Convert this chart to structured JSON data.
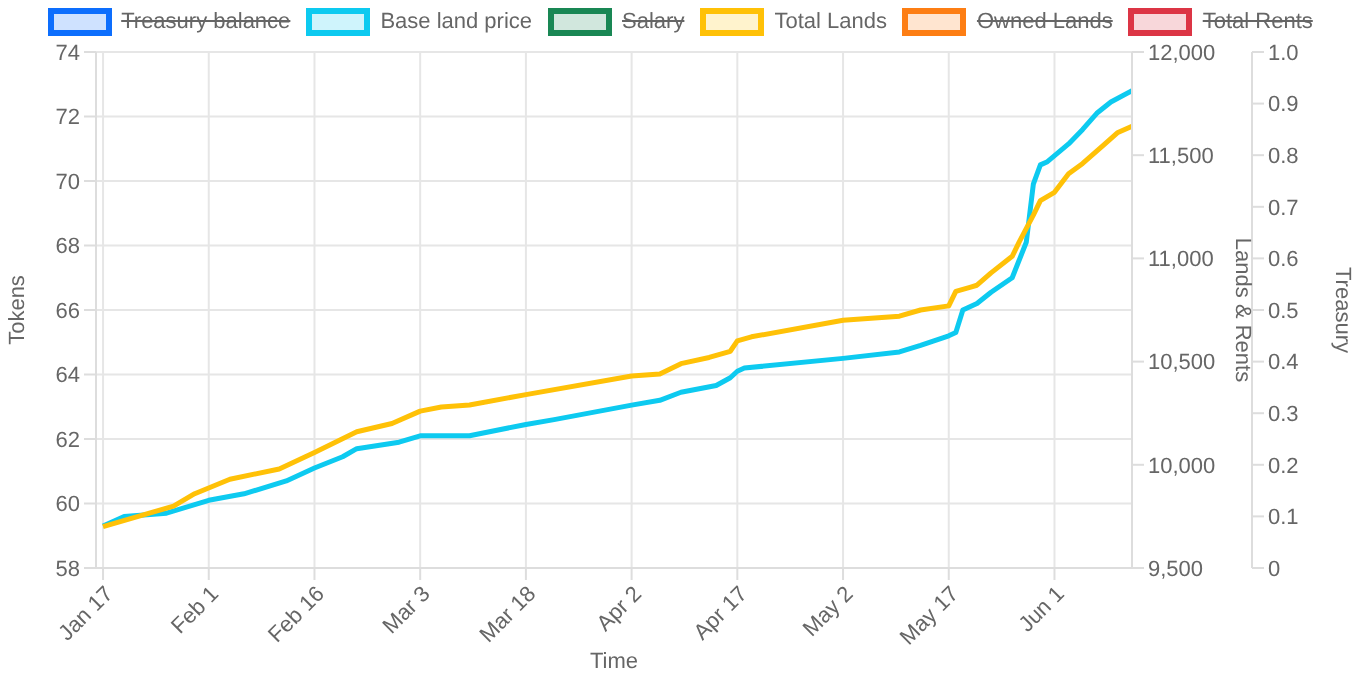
{
  "chart_data": {
    "type": "line",
    "xlabel": "Time",
    "ylabel": "Tokens",
    "y2label": "Lands & Rents",
    "y3label": "Treasury",
    "legend": "top",
    "grid": true,
    "marker": "none",
    "line_style": "solid",
    "xlim": [
      "--01-16",
      "--06-12"
    ],
    "xticks": [
      {
        "value": "--01-17",
        "label": "Jan 17"
      },
      {
        "value": "--02-01",
        "label": "Feb 1"
      },
      {
        "value": "--02-16",
        "label": "Feb 16"
      },
      {
        "value": "--03-03",
        "label": "Mar 3"
      },
      {
        "value": "--03-18",
        "label": "Mar 18"
      },
      {
        "value": "--04-02",
        "label": "Apr 2"
      },
      {
        "value": "--04-17",
        "label": "Apr 17"
      },
      {
        "value": "--05-02",
        "label": "May 2"
      },
      {
        "value": "--05-17",
        "label": "May 17"
      },
      {
        "value": "--06-01",
        "label": "Jun 1"
      }
    ],
    "ylim": [
      58,
      74
    ],
    "yticks": [
      58,
      60,
      62,
      64,
      66,
      68,
      70,
      72,
      74
    ],
    "y2lim": [
      9500,
      12000
    ],
    "y2ticks": [
      {
        "value": 9500,
        "label": "9,500"
      },
      {
        "value": 10000,
        "label": "10,000"
      },
      {
        "value": 10500,
        "label": "10,500"
      },
      {
        "value": 11000,
        "label": "11,000"
      },
      {
        "value": 11500,
        "label": "11,500"
      },
      {
        "value": 12000,
        "label": "12,000"
      }
    ],
    "y3lim": [
      0,
      1
    ],
    "y3ticks": [
      0,
      0.1,
      0.2,
      0.3,
      0.4,
      0.5,
      0.6,
      0.7,
      0.8,
      0.9,
      {
        "value": 1,
        "label": "1.0"
      }
    ],
    "series": [
      {
        "name": "Treasury balance",
        "color": "#0d6efd"
      },
      {
        "name": "Base land price",
        "color": "#0dcaf0",
        "x": [
          "--01-17",
          "--01-20",
          "--01-26",
          "--02-01",
          "--02-06",
          "--02-12",
          "--02-16",
          "--02-20",
          "--02-22",
          "--02-28",
          "--03-03",
          "--03-10",
          "--03-18",
          "--03-22",
          "--04-02",
          "--04-06",
          "--04-09",
          "--04-14",
          "--04-16",
          "--04-17",
          "--04-18",
          "--05-02",
          "--05-10",
          "--05-13",
          "--05-17",
          "--05-18",
          "--05-19",
          "--05-21",
          "--05-23",
          "--05-26",
          "--05-28",
          "--05-29",
          "--05-30",
          "--05-31",
          "--06-03",
          "--06-05",
          "--06-07",
          "--06-09",
          "--06-12"
        ],
        "values": [
          59.3,
          59.6,
          59.7,
          60.1,
          60.3,
          60.7,
          61.1,
          61.45,
          61.7,
          61.9,
          62.1,
          62.1,
          62.45,
          62.6,
          63.05,
          63.2,
          63.45,
          63.66,
          63.9,
          64.1,
          64.2,
          64.5,
          64.7,
          64.9,
          65.2,
          65.3,
          66.0,
          66.2,
          66.55,
          67.0,
          68.1,
          69.9,
          70.5,
          70.6,
          71.15,
          71.6,
          72.1,
          72.45,
          72.8
        ]
      },
      {
        "name": "Salary",
        "color": "#198754"
      },
      {
        "name": "Total Lands",
        "color": "#ffc107",
        "axis": "y2",
        "x": [
          "--01-17",
          "--01-27",
          "--01-30",
          "--02-04",
          "--02-11",
          "--02-16",
          "--02-22",
          "--02-27",
          "--03-03",
          "--03-06",
          "--03-10",
          "--03-18",
          "--04-02",
          "--04-06",
          "--04-09",
          "--04-13",
          "--04-16",
          "--04-17",
          "--04-19",
          "--05-02",
          "--05-10",
          "--05-13",
          "--05-17",
          "--05-18",
          "--05-20",
          "--05-21",
          "--05-23",
          "--05-26",
          "--05-27",
          "--05-29",
          "--05-30",
          "--06-01",
          "--06-03",
          "--06-05",
          "--06-08",
          "--06-10",
          "--06-12"
        ],
        "values": [
          9700,
          9800,
          9860,
          9930,
          9980,
          10060,
          10160,
          10200,
          10260,
          10280,
          10290,
          10340,
          10430,
          10440,
          10490,
          10520,
          10550,
          10600,
          10620,
          10700,
          10720,
          10750,
          10770,
          10840,
          10860,
          10870,
          10930,
          11010,
          11080,
          11210,
          11280,
          11320,
          11410,
          11460,
          11550,
          11610,
          11640
        ]
      },
      {
        "name": "Owned Lands",
        "color": "#fd7e14"
      },
      {
        "name": "Total Rents",
        "color": "#dc3545"
      }
    ]
  }
}
